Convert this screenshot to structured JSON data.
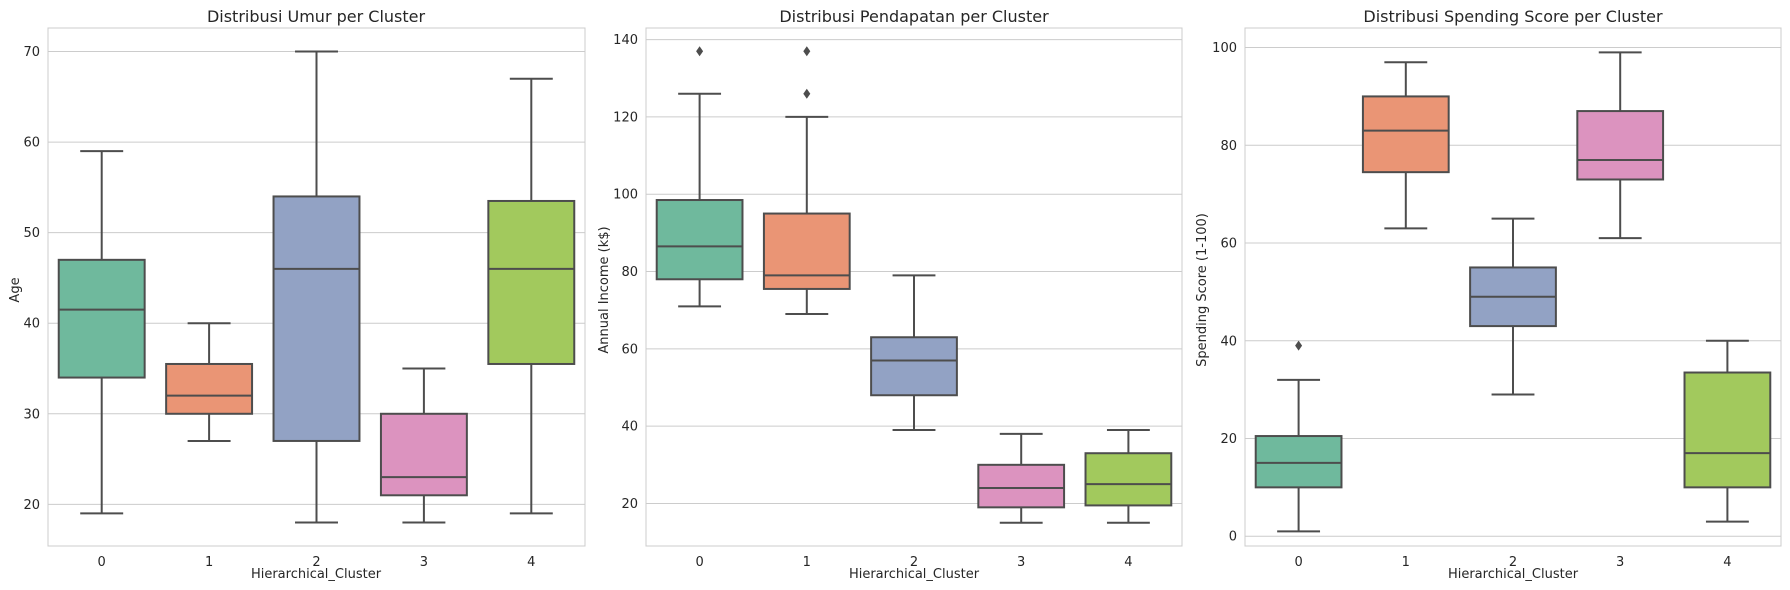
{
  "colors": {
    "cluster_palette": [
      "#6fb99d",
      "#ea9575",
      "#92a2c4",
      "#dc93bf",
      "#a2c95d"
    ],
    "grid": "#cccccc",
    "box_edge": "#4d4d4d"
  },
  "chart_data": [
    {
      "type": "box",
      "title": "Distribusi Umur per Cluster",
      "xlabel": "Hierarchical_Cluster",
      "ylabel": "Age",
      "categories": [
        "0",
        "1",
        "2",
        "3",
        "4"
      ],
      "ylim": [
        15.4,
        72.6
      ],
      "yticks": [
        20,
        30,
        40,
        50,
        60,
        70
      ],
      "grid": true,
      "boxes": [
        {
          "whislo": 19,
          "q1": 34,
          "med": 41.5,
          "q3": 47,
          "whishi": 59,
          "fliers": []
        },
        {
          "whislo": 27,
          "q1": 30,
          "med": 32,
          "q3": 35.5,
          "whishi": 40,
          "fliers": []
        },
        {
          "whislo": 18,
          "q1": 27,
          "med": 46,
          "q3": 54,
          "whishi": 70,
          "fliers": []
        },
        {
          "whislo": 18,
          "q1": 21,
          "med": 23,
          "q3": 30,
          "whishi": 35,
          "fliers": []
        },
        {
          "whislo": 19,
          "q1": 35.5,
          "med": 46,
          "q3": 53.5,
          "whishi": 67,
          "fliers": []
        }
      ]
    },
    {
      "type": "box",
      "title": "Distribusi Pendapatan per Cluster",
      "xlabel": "Hierarchical_Cluster",
      "ylabel": "Annual Income (k$)",
      "categories": [
        "0",
        "1",
        "2",
        "3",
        "4"
      ],
      "ylim": [
        9,
        143
      ],
      "yticks": [
        20,
        40,
        60,
        80,
        100,
        120,
        140
      ],
      "grid": true,
      "boxes": [
        {
          "whislo": 71,
          "q1": 78,
          "med": 86.5,
          "q3": 98.5,
          "whishi": 126,
          "fliers": [
            137
          ]
        },
        {
          "whislo": 69,
          "q1": 75.5,
          "med": 79,
          "q3": 95,
          "whishi": 120,
          "fliers": [
            126,
            137
          ]
        },
        {
          "whislo": 39,
          "q1": 48,
          "med": 57,
          "q3": 63,
          "whishi": 79,
          "fliers": []
        },
        {
          "whislo": 15,
          "q1": 19,
          "med": 24,
          "q3": 30,
          "whishi": 38,
          "fliers": []
        },
        {
          "whislo": 15,
          "q1": 19.5,
          "med": 25,
          "q3": 33,
          "whishi": 39,
          "fliers": []
        }
      ]
    },
    {
      "type": "box",
      "title": "Distribusi Spending Score per Cluster",
      "xlabel": "Hierarchical_Cluster",
      "ylabel": "Spending Score (1-100)",
      "categories": [
        "0",
        "1",
        "2",
        "3",
        "4"
      ],
      "ylim": [
        -2,
        104
      ],
      "yticks": [
        0,
        20,
        40,
        60,
        80,
        100
      ],
      "grid": true,
      "boxes": [
        {
          "whislo": 1,
          "q1": 10,
          "med": 15,
          "q3": 20.5,
          "whishi": 32,
          "fliers": [
            39
          ]
        },
        {
          "whislo": 63,
          "q1": 74.5,
          "med": 83,
          "q3": 90,
          "whishi": 97,
          "fliers": []
        },
        {
          "whislo": 29,
          "q1": 43,
          "med": 49,
          "q3": 55,
          "whishi": 65,
          "fliers": []
        },
        {
          "whislo": 61,
          "q1": 73,
          "med": 77,
          "q3": 87,
          "whishi": 99,
          "fliers": []
        },
        {
          "whislo": 3,
          "q1": 10,
          "med": 17,
          "q3": 33.5,
          "whishi": 40,
          "fliers": []
        }
      ]
    }
  ]
}
